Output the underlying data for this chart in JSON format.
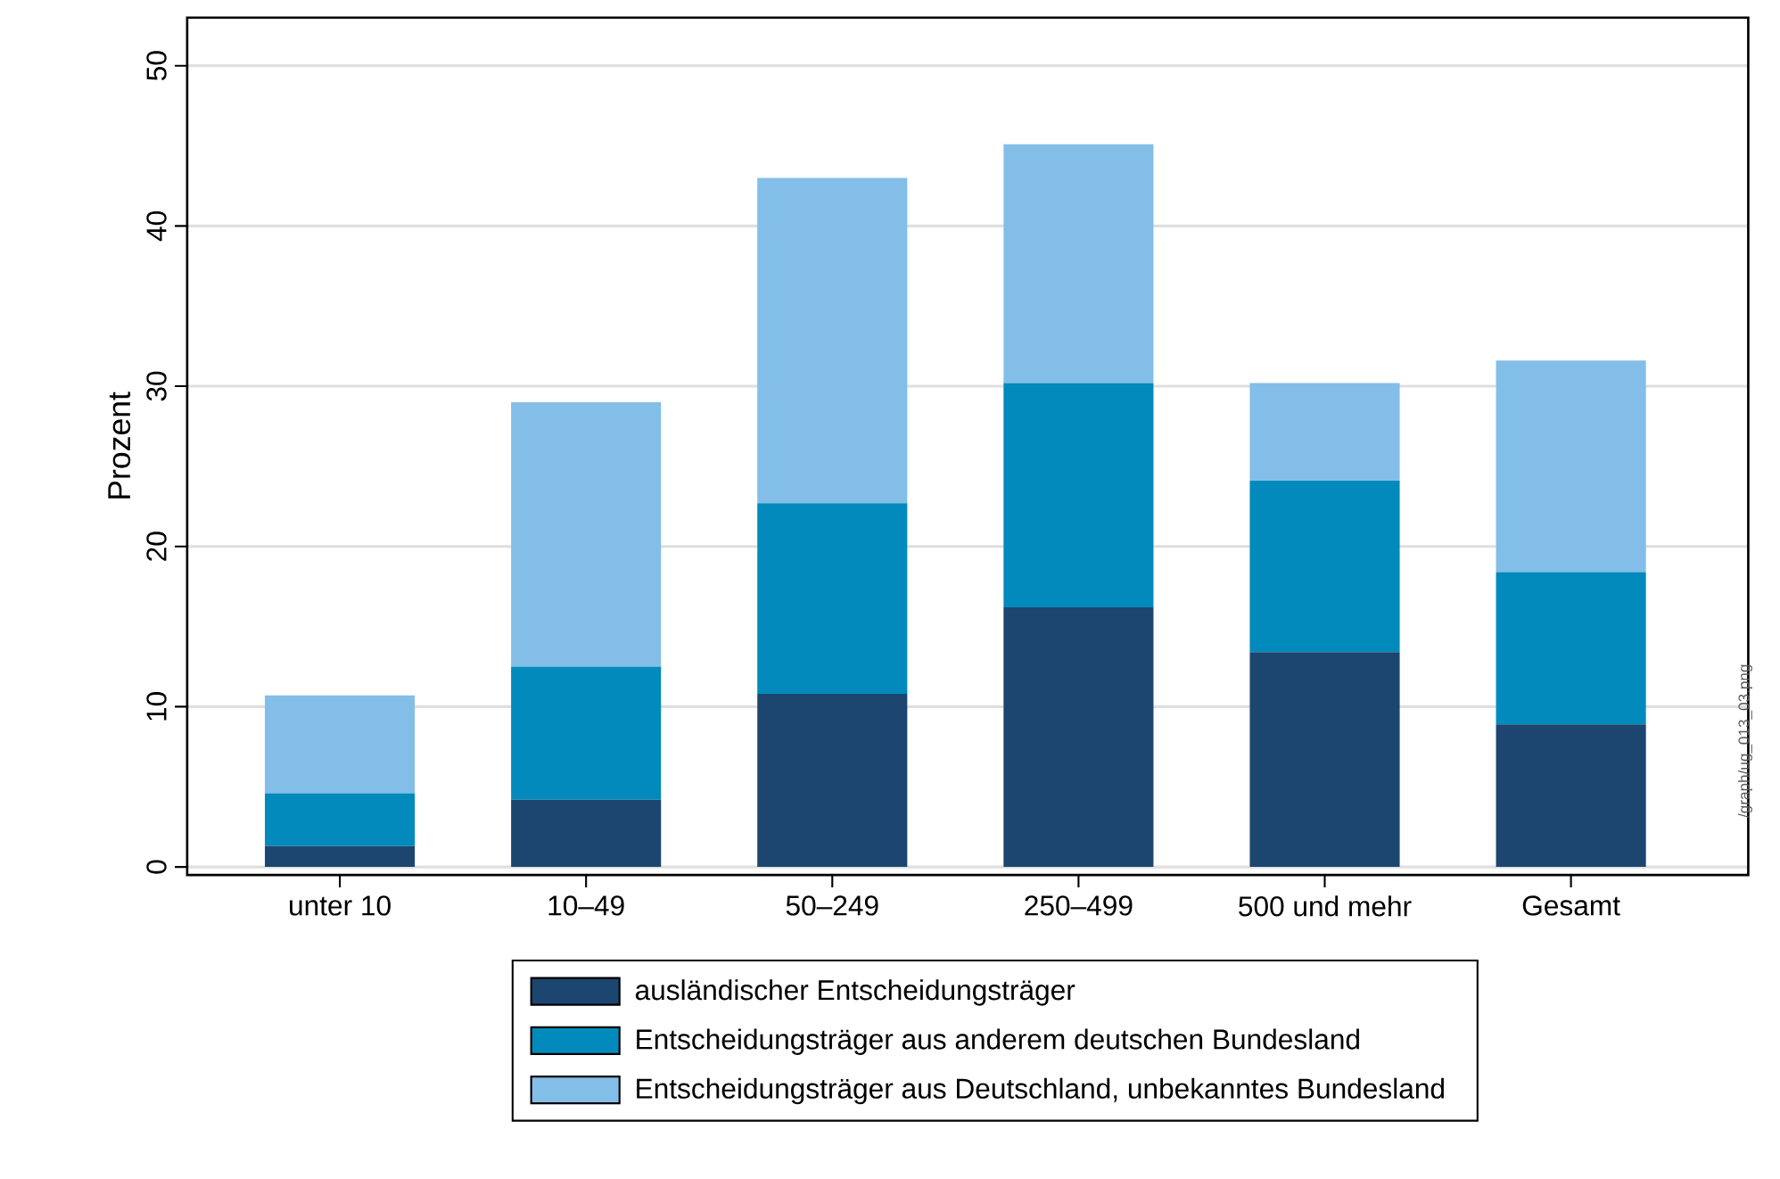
{
  "chart_data": {
    "type": "bar",
    "stacked": true,
    "ylabel": "Prozent",
    "categories": [
      "unter 10",
      "10–49",
      "50–249",
      "250–499",
      "500 und mehr",
      "Gesamt"
    ],
    "series": [
      {
        "name": "ausländischer Entscheidungsträger",
        "color": "#1c4670",
        "values": [
          1.3,
          4.2,
          10.8,
          16.2,
          13.4,
          8.9
        ]
      },
      {
        "name": "Entscheidungsträger aus anderem deutschen Bundesland",
        "color": "#028abc",
        "values": [
          3.3,
          8.3,
          11.9,
          14.0,
          10.7,
          9.5
        ]
      },
      {
        "name": "Entscheidungsträger aus Deutschland, unbekanntes Bundesland",
        "color": "#83bee8",
        "values": [
          6.1,
          16.5,
          20.3,
          14.9,
          6.1,
          13.2
        ]
      }
    ],
    "ylim": [
      -0.5,
      53
    ],
    "yticks": [
      0,
      10,
      20,
      30,
      40,
      50
    ],
    "grid": "y",
    "legend": "bottom",
    "annotations": [
      "/graph/ug_013_03.png"
    ]
  }
}
